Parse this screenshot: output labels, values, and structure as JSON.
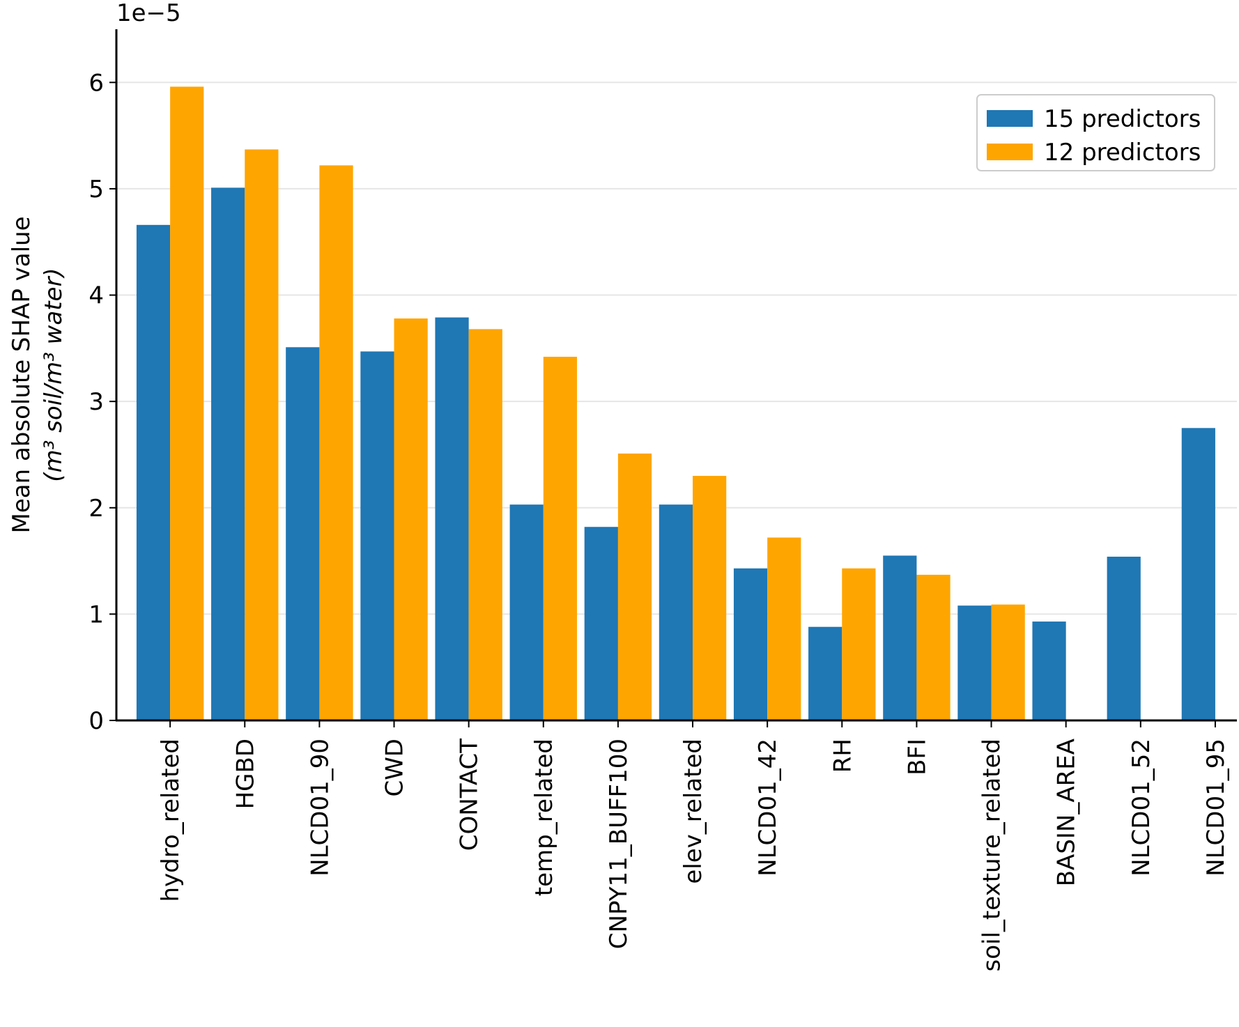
{
  "chart_data": {
    "type": "bar",
    "y_offset_label": "1e−5",
    "ylabel": [
      "Mean absolute SHAP value",
      "(m³ soil/m³ water)"
    ],
    "categories": [
      "hydro_related",
      "HGBD",
      "NLCD01_90",
      "CWD",
      "CONTACT",
      "temp_related",
      "CNPY11_BUFF100",
      "elev_related",
      "NLCD01_42",
      "RH",
      "BFI",
      "soil_texture_related",
      "BASIN_AREA",
      "NLCD01_52",
      "NLCD01_95"
    ],
    "series": [
      {
        "name": "15 predictors",
        "color": "#1f77b4",
        "values": [
          4.66,
          5.01,
          3.51,
          3.47,
          3.79,
          2.03,
          1.82,
          2.03,
          1.43,
          0.88,
          1.55,
          1.08,
          0.93,
          1.54,
          2.75
        ]
      },
      {
        "name": "12 predictors",
        "color": "#ffa500",
        "values": [
          5.96,
          5.37,
          5.22,
          3.78,
          3.68,
          3.42,
          2.51,
          2.3,
          1.72,
          1.43,
          1.37,
          1.09,
          null,
          null,
          null
        ]
      }
    ],
    "ylim": [
      0,
      6.5
    ],
    "yticks": [
      0,
      1,
      2,
      3,
      4,
      5,
      6
    ],
    "grid": true,
    "legend": "upper right"
  }
}
